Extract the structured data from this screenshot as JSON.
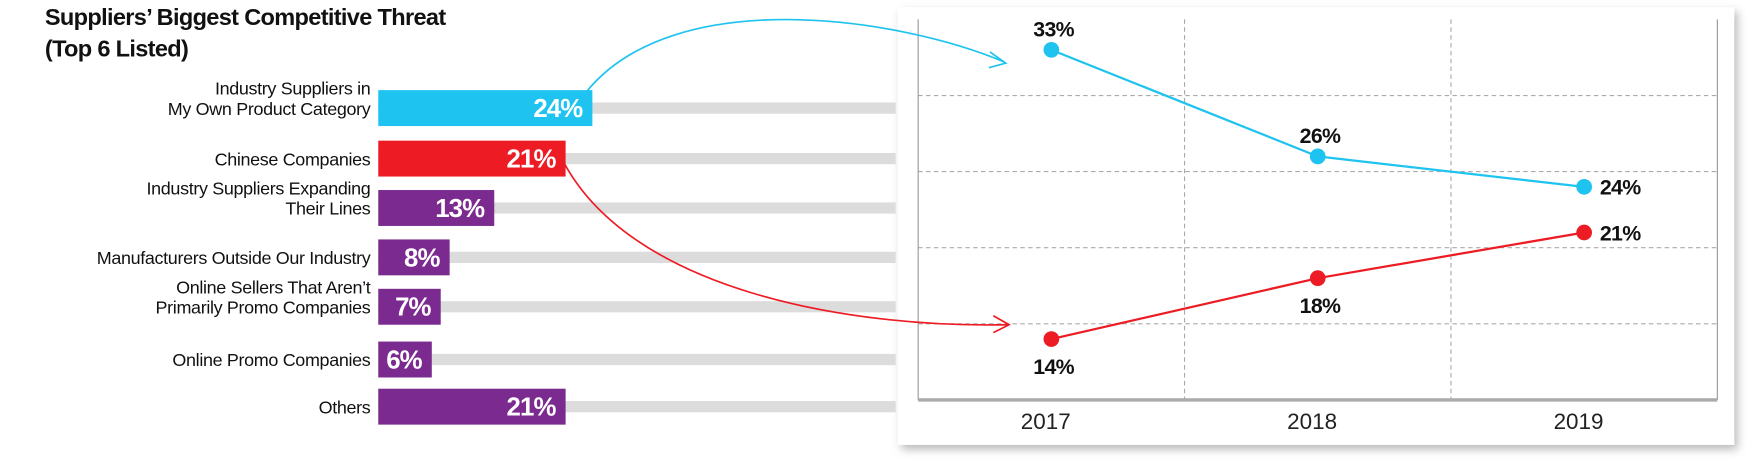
{
  "chart_data": [
    {
      "type": "bar",
      "orientation": "horizontal",
      "title": "Suppliers’ Biggest Competitive Threat",
      "subtitle": "(Top 6 Listed)",
      "categories": [
        [
          "Industry Suppliers in",
          "My Own Product Category"
        ],
        "Chinese Companies",
        [
          "Industry Suppliers Expanding",
          "Their Lines"
        ],
        "Manufacturers Outside Our Industry",
        [
          "Online Sellers That Aren’t",
          "Primarily Promo Companies"
        ],
        "Online Promo Companies",
        "Others"
      ],
      "values": [
        24,
        21,
        13,
        8,
        7,
        6,
        21
      ],
      "value_labels": [
        "24%",
        "21%",
        "13%",
        "8%",
        "7%",
        "6%",
        "21%"
      ],
      "colors": [
        "#1fc3f0",
        "#ed1c24",
        "#7b2a8f",
        "#7b2a8f",
        "#7b2a8f",
        "#7b2a8f",
        "#7b2a8f"
      ],
      "track_color": "#dcdcdc",
      "xlim": [
        0,
        58
      ]
    },
    {
      "type": "line",
      "categories": [
        "2017",
        "2018",
        "2019"
      ],
      "series": [
        {
          "color": "#1fc3f0",
          "values": [
            33,
            26,
            24
          ],
          "value_labels": [
            "33%",
            "26%",
            "24%"
          ]
        },
        {
          "color": "#ed1c24",
          "values": [
            14,
            18,
            21
          ],
          "value_labels": [
            "14%",
            "18%",
            "21%"
          ]
        }
      ],
      "ylim": [
        10,
        35
      ],
      "yticks": [
        15,
        20,
        25,
        30
      ],
      "grid": true
    }
  ]
}
